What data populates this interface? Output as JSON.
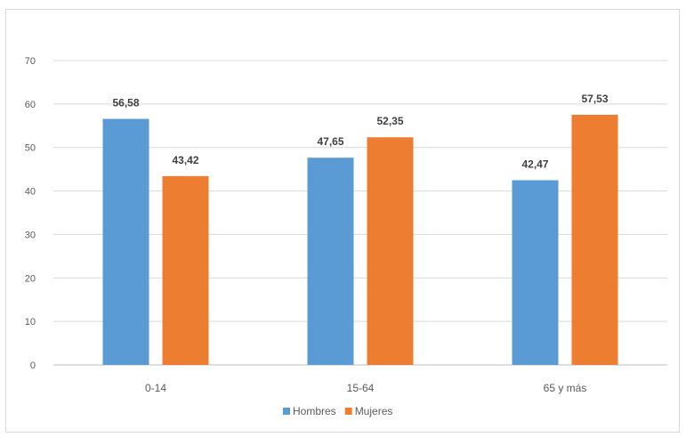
{
  "chart_data": {
    "type": "bar",
    "title": "",
    "xlabel": "",
    "ylabel": "",
    "categories": [
      "0-14",
      "15-64",
      "65 y más"
    ],
    "series": [
      {
        "name": "Hombres",
        "values": [
          56.58,
          47.65,
          42.47
        ],
        "labels": [
          "56,58",
          "47,65",
          "42,47"
        ],
        "color": "#5b9bd5"
      },
      {
        "name": "Mujeres",
        "values": [
          43.42,
          52.35,
          57.53
        ],
        "labels": [
          "43,42",
          "52,35",
          "57,53"
        ],
        "color": "#ed7d31"
      }
    ],
    "ylim": [
      0,
      70
    ],
    "yticks": [
      0,
      10,
      20,
      30,
      40,
      50,
      60,
      70
    ],
    "grid": true,
    "legend": "bottom"
  },
  "colors": {
    "grid": "#d9d9d9",
    "axis": "#bfbfbf"
  }
}
